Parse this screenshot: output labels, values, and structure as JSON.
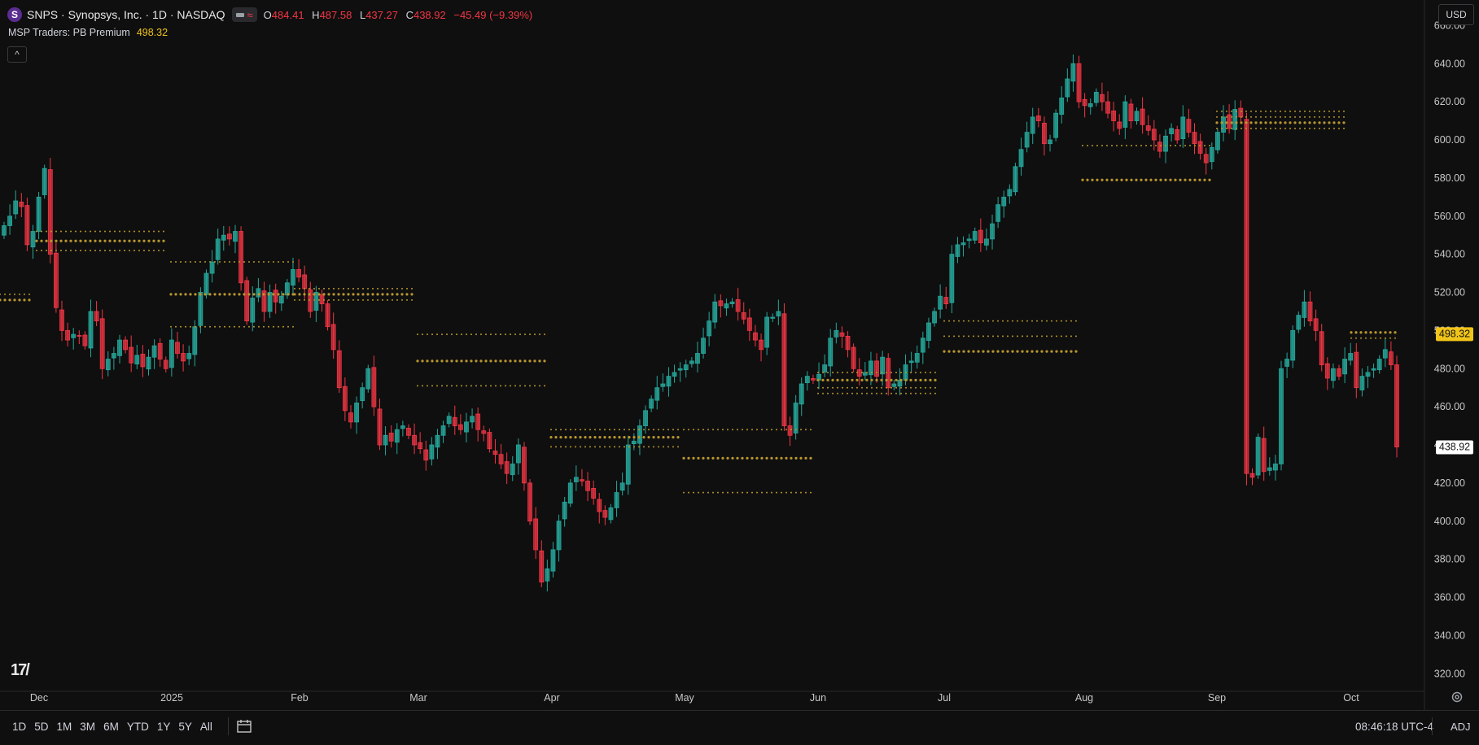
{
  "header": {
    "logo_letter": "S",
    "symbol_line": "SNPS · Synopsys, Inc. · 1D · NASDAQ",
    "ohlc": {
      "o_label": "O",
      "o": "484.41",
      "h_label": "H",
      "h": "487.58",
      "l_label": "L",
      "l": "437.27",
      "c_label": "C",
      "c": "438.92",
      "change": "−45.49 (−9.39%)"
    }
  },
  "indicator": {
    "name": "MSP Traders: PB Premium",
    "value": "498.32"
  },
  "currency": "USD",
  "price_axis": {
    "labels": [
      "660.00",
      "640.00",
      "620.00",
      "600.00",
      "580.00",
      "560.00",
      "540.00",
      "520.00",
      "500.00",
      "480.00",
      "460.00",
      "440.00",
      "420.00",
      "400.00",
      "380.00",
      "360.00",
      "340.00",
      "320.00"
    ],
    "indicator_tag": "498.32",
    "last_price_tag": "438.92",
    "indicator_color": "#f0c419"
  },
  "time_axis": [
    "Dec",
    "2025",
    "Feb",
    "Mar",
    "Apr",
    "May",
    "Jun",
    "Jul",
    "Aug",
    "Sep",
    "Oct"
  ],
  "ranges": [
    "1D",
    "5D",
    "1M",
    "3M",
    "6M",
    "YTD",
    "1Y",
    "5Y",
    "All"
  ],
  "clock": "08:46:18 UTC-4",
  "adj": "ADJ",
  "colors": {
    "up": "#26a69a",
    "down": "#f23645",
    "level": "#b8962e",
    "bg": "#0f0f0f"
  },
  "chart_data": {
    "type": "candlestick",
    "ylim": [
      312,
      664
    ],
    "closes": [
      555,
      560,
      568,
      565,
      545,
      552,
      570,
      585,
      540,
      512,
      500,
      495,
      498,
      497,
      492,
      510,
      505,
      480,
      485,
      488,
      495,
      490,
      483,
      487,
      481,
      486,
      492,
      485,
      480,
      495,
      488,
      484,
      488,
      502,
      520,
      530,
      536,
      548,
      550,
      548,
      552,
      525,
      505,
      517,
      522,
      510,
      520,
      515,
      518,
      525,
      532,
      528,
      522,
      510,
      520,
      514,
      502,
      490,
      470,
      458,
      452,
      462,
      470,
      480,
      460,
      440,
      445,
      442,
      448,
      450,
      445,
      440,
      438,
      432,
      440,
      445,
      450,
      455,
      450,
      448,
      452,
      455,
      448,
      446,
      438,
      435,
      430,
      425,
      430,
      440,
      420,
      400,
      385,
      368,
      375,
      385,
      400,
      410,
      420,
      423,
      421,
      416,
      412,
      405,
      402,
      407,
      415,
      420,
      440,
      442,
      450,
      458,
      464,
      470,
      472,
      476,
      478,
      480,
      482,
      484,
      488,
      496,
      505,
      515,
      513,
      514,
      515,
      510,
      506,
      500,
      495,
      490,
      507,
      507,
      510,
      450,
      445,
      462,
      472,
      476,
      474,
      477,
      482,
      496,
      500,
      497,
      490,
      480,
      476,
      478,
      484,
      476,
      486,
      470,
      472,
      474,
      482,
      484,
      488,
      496,
      504,
      510,
      518,
      514,
      540,
      545,
      546,
      548,
      552,
      546,
      548,
      556,
      566,
      570,
      574,
      586,
      595,
      604,
      612,
      610,
      598,
      600,
      614,
      622,
      632,
      640,
      620,
      618,
      619,
      625,
      620,
      614,
      610,
      606,
      620,
      610,
      615,
      608,
      605,
      600,
      594,
      602,
      606,
      600,
      612,
      604,
      598,
      593,
      588,
      596,
      604,
      612,
      606,
      616,
      612,
      425,
      423,
      444,
      426,
      428,
      430,
      480,
      485,
      500,
      508,
      515,
      505,
      500,
      482,
      475,
      480,
      476,
      485,
      488,
      470,
      476,
      478,
      480,
      485,
      490,
      482,
      438.92
    ]
  }
}
